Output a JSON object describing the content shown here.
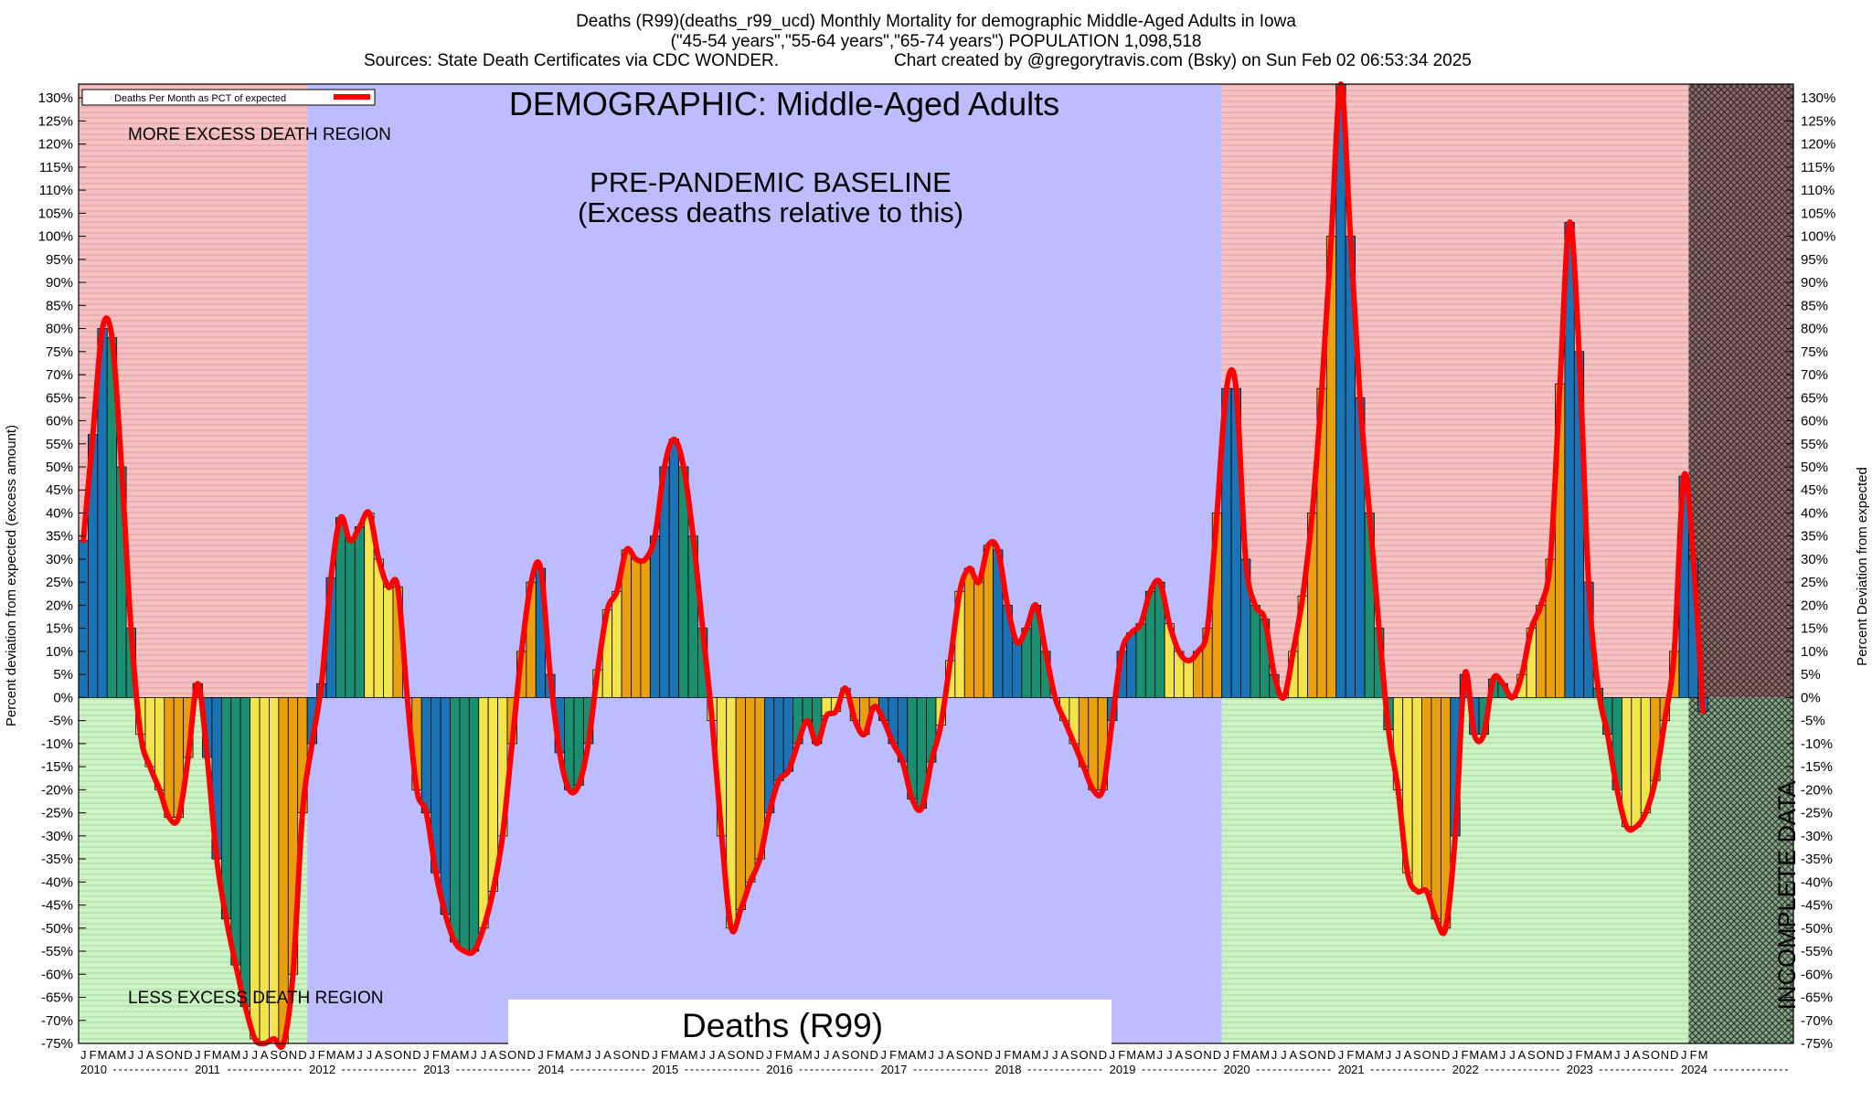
{
  "header": {
    "title_line1": "Deaths (R99)(deaths_r99_ucd) Monthly Mortality for demographic Middle-Aged Adults in Iowa",
    "title_line2": "(\"45-54 years\",\"55-64 years\",\"65-74 years\") POPULATION 1,098,518",
    "sources": "Sources: State Death Certificates via CDC WONDER.",
    "credit": "Chart created by @gregorytravis.com (Bsky) on Sun Feb 02 06:53:34 2025"
  },
  "chart_data": {
    "type": "bar",
    "ylabel_left": "Percent deviation from expected (excess amount)",
    "ylabel_right": "Percent Deviation from expected",
    "ylim": [
      -75,
      133
    ],
    "y_ticks": [
      130,
      125,
      120,
      115,
      110,
      105,
      100,
      95,
      90,
      85,
      80,
      75,
      70,
      65,
      60,
      55,
      50,
      45,
      40,
      35,
      30,
      25,
      20,
      15,
      10,
      5,
      0,
      -5,
      -10,
      -15,
      -20,
      -25,
      -30,
      -35,
      -40,
      -45,
      -50,
      -55,
      -60,
      -65,
      -70,
      -75
    ],
    "legend": {
      "label": "Deaths Per Month as PCT of expected",
      "color": "#ff0000",
      "position": "top-left"
    },
    "annotations": {
      "demographic": "DEMOGRAPHIC: Middle-Aged Adults",
      "more_region": "MORE EXCESS DEATH REGION",
      "less_region": "LESS EXCESS DEATH REGION",
      "baseline_line1": "PRE-PANDEMIC BASELINE",
      "baseline_line2": "(Excess deaths relative to this)",
      "cause": "Deaths (R99)",
      "incomplete": "INCOMPLETE DATA"
    },
    "month_letters": [
      "J",
      "F",
      "M",
      "A",
      "M",
      "J",
      "J",
      "A",
      "S",
      "O",
      "N",
      "D"
    ],
    "years": [
      "2010",
      "2011",
      "2012",
      "2013",
      "2014",
      "2015",
      "2016",
      "2017",
      "2018",
      "2019",
      "2020",
      "2021",
      "2022",
      "2023",
      "2024"
    ],
    "start": "2010-01",
    "values": [
      34,
      57,
      80,
      78,
      50,
      15,
      -8,
      -15,
      -20,
      -26,
      -26,
      -13,
      3,
      -13,
      -35,
      -48,
      -58,
      -67,
      -74,
      -75,
      -74,
      -75,
      -60,
      -25,
      -10,
      3,
      26,
      39,
      34,
      37,
      40,
      30,
      24,
      24,
      0,
      -20,
      -25,
      -38,
      -47,
      -53,
      -55,
      -55,
      -50,
      -42,
      -30,
      -10,
      10,
      25,
      28,
      5,
      -12,
      -20,
      -19,
      -10,
      6,
      19,
      23,
      32,
      30,
      30,
      35,
      50,
      56,
      50,
      35,
      15,
      -5,
      -30,
      -50,
      -46,
      -40,
      -35,
      -25,
      -18,
      -16,
      -10,
      -5,
      -10,
      -4,
      -3,
      2,
      -5,
      -8,
      -2,
      -5,
      -10,
      -14,
      -22,
      -24,
      -14,
      -6,
      8,
      23,
      28,
      25,
      33,
      32,
      20,
      12,
      15,
      20,
      10,
      0,
      -5,
      -10,
      -15,
      -20,
      -20,
      -5,
      10,
      14,
      16,
      23,
      25,
      16,
      10,
      8,
      10,
      15,
      40,
      67,
      67,
      30,
      20,
      17,
      5,
      0,
      10,
      22,
      40,
      67,
      100,
      133,
      100,
      65,
      40,
      15,
      -7,
      -20,
      -38,
      -42,
      -42,
      -48,
      -50,
      -30,
      5,
      -8,
      -8,
      4,
      3,
      0,
      5,
      15,
      20,
      30,
      68,
      103,
      75,
      25,
      2,
      -8,
      -20,
      -28,
      -28,
      -25,
      -18,
      -5,
      10,
      48,
      30,
      -3
    ],
    "incomplete_months": 11,
    "colors": {
      "excess_region": "#f4c2c2",
      "deficit_region": "#c8efc0",
      "baseline_region": "#bcbcff",
      "incomplete_region": "#7a5252",
      "bar_blue": "#1a73b5",
      "bar_green": "#1a9070",
      "bar_yellow": "#f2e44a",
      "bar_orange": "#e8a010",
      "line": "#ff0000"
    }
  }
}
